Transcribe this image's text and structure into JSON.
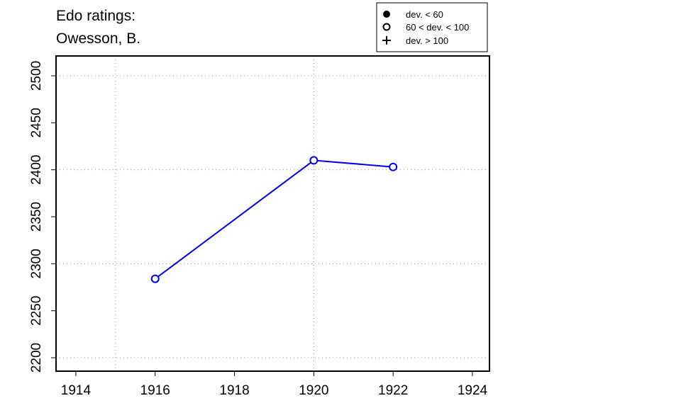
{
  "chart_data": {
    "type": "line",
    "title_lines": [
      "Edo ratings:",
      "Owesson, B."
    ],
    "x": [
      1916,
      1920,
      1922
    ],
    "series": [
      {
        "color": "#0000ee",
        "values": [
          2284,
          2410,
          2403
        ]
      }
    ],
    "xlim": [
      1913.5,
      1924.43
    ],
    "ylim": [
      2185.7,
      2521.1
    ],
    "xticks": [
      1914,
      1916,
      1918,
      1920,
      1922,
      1924
    ],
    "yticks": [
      2200,
      2250,
      2300,
      2350,
      2400,
      2450,
      2500
    ],
    "xgrid": [
      1915,
      1920
    ],
    "ygrid": [
      2200,
      2300,
      2400,
      2500
    ],
    "legend": [
      "dev. < 60",
      "60 < dev. < 100",
      "dev. > 100"
    ]
  }
}
